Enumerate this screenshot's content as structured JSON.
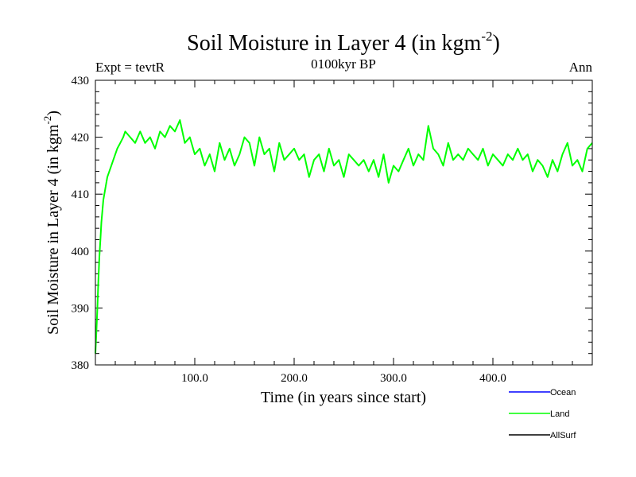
{
  "chart_data": {
    "type": "line",
    "title": "Soil Moisture in Layer 4 (in kgm",
    "title_sup": "-2",
    "title_close": ")",
    "subtitle_left": "Expt = tevtR",
    "subtitle_center": "0100kyr BP",
    "subtitle_right": "Ann",
    "xlabel": "Time (in years since start)",
    "ylabel": "Soil Moisture in Layer 4 (in kgm",
    "ylabel_sup": "-2",
    "ylabel_close": ")",
    "xlim": [
      0,
      500
    ],
    "ylim": [
      380,
      430
    ],
    "x_ticks": [
      100,
      200,
      300,
      400
    ],
    "x_tick_labels": [
      "100.0",
      "200.0",
      "300.0",
      "400.0"
    ],
    "y_ticks": [
      380,
      390,
      400,
      410,
      420,
      430
    ],
    "y_tick_labels": [
      "380",
      "390",
      "400",
      "410",
      "420",
      "430"
    ],
    "legend": [
      {
        "name": "Ocean",
        "color": "#0000ff"
      },
      {
        "name": "Land",
        "color": "#00ff00"
      },
      {
        "name": "AllSurf",
        "color": "#000000"
      }
    ],
    "series": [
      {
        "name": "Land",
        "color": "#00ff00",
        "x": [
          0,
          1,
          2,
          3,
          4,
          5,
          6,
          8,
          10,
          12,
          14,
          16,
          18,
          20,
          22,
          25,
          28,
          30,
          35,
          40,
          45,
          50,
          55,
          60,
          65,
          70,
          75,
          80,
          85,
          90,
          95,
          100,
          105,
          110,
          115,
          120,
          125,
          130,
          135,
          140,
          145,
          150,
          155,
          160,
          165,
          170,
          175,
          180,
          185,
          190,
          195,
          200,
          205,
          210,
          215,
          220,
          225,
          230,
          235,
          240,
          245,
          250,
          255,
          260,
          265,
          270,
          275,
          280,
          285,
          290,
          295,
          300,
          305,
          310,
          315,
          320,
          325,
          330,
          335,
          340,
          345,
          350,
          355,
          360,
          365,
          370,
          375,
          380,
          385,
          390,
          395,
          400,
          405,
          410,
          415,
          420,
          425,
          430,
          435,
          440,
          445,
          450,
          455,
          460,
          465,
          470,
          475,
          480,
          485,
          490,
          495,
          500
        ],
        "values": [
          382,
          386,
          390,
          395,
          399,
          402,
          405,
          409,
          411,
          413,
          414,
          415,
          416,
          417,
          418,
          419,
          420,
          421,
          420,
          419,
          421,
          419,
          420,
          418,
          421,
          420,
          422,
          421,
          423,
          419,
          420,
          417,
          418,
          415,
          417,
          414,
          419,
          416,
          418,
          415,
          417,
          420,
          419,
          415,
          420,
          417,
          418,
          414,
          419,
          416,
          417,
          418,
          416,
          417,
          413,
          416,
          417,
          414,
          418,
          415,
          416,
          413,
          417,
          416,
          415,
          416,
          414,
          416,
          413,
          417,
          412,
          415,
          414,
          416,
          418,
          415,
          417,
          416,
          422,
          418,
          417,
          415,
          419,
          416,
          417,
          416,
          418,
          417,
          416,
          418,
          415,
          417,
          416,
          415,
          417,
          416,
          418,
          416,
          417,
          414,
          416,
          415,
          413,
          416,
          414,
          417,
          419,
          415,
          416,
          414,
          418,
          419
        ]
      },
      {
        "name": "Ocean",
        "color": "#0000ff",
        "values": []
      },
      {
        "name": "AllSurf",
        "color": "#000000",
        "values": []
      }
    ]
  }
}
